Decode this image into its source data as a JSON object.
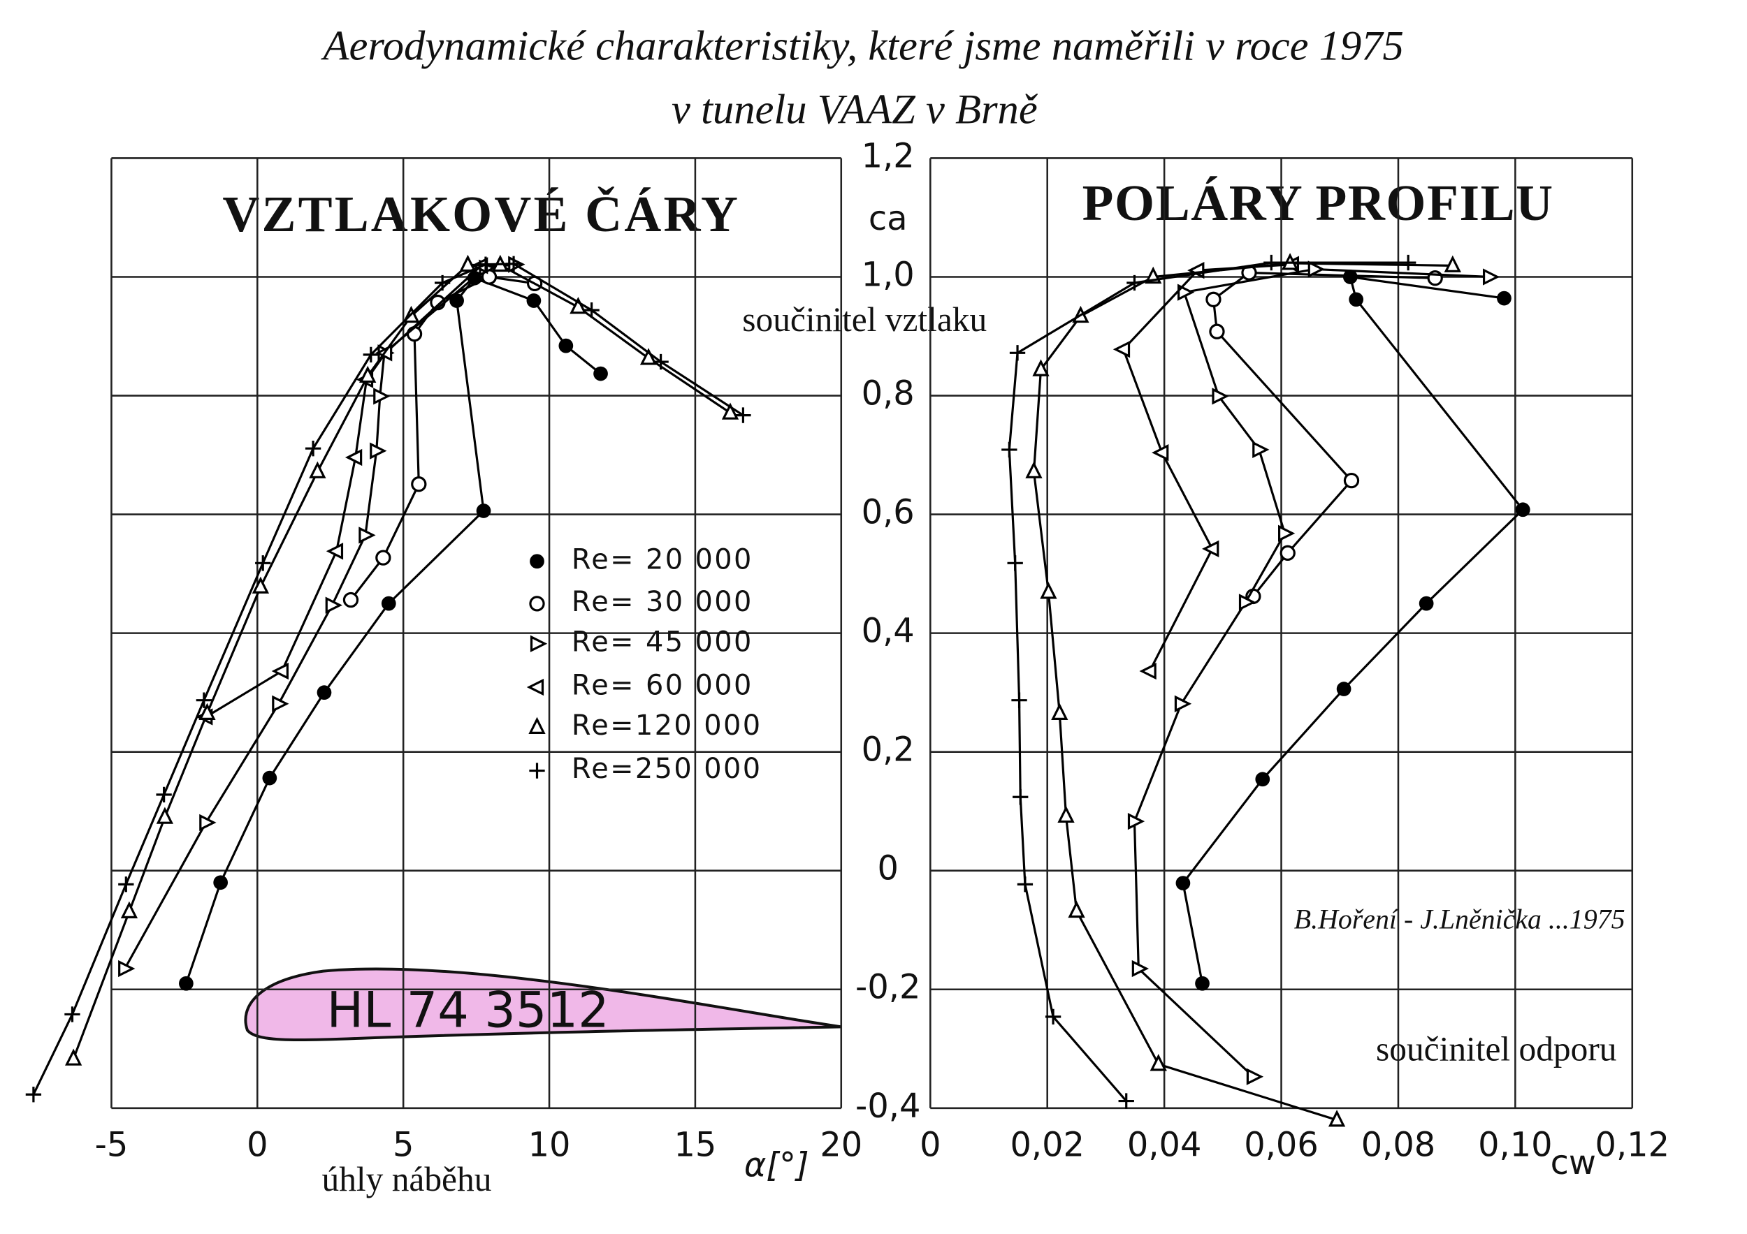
{
  "title_lines": [
    "Aerodynamické charakteristiky, které jsme naměřili v roce 1975",
    "v tunelu VAAZ v Brně"
  ],
  "chart_data": [
    {
      "type": "line",
      "title": "VZTLAKOVÉ ČÁRY",
      "ylabel": "součinitel vztlaku",
      "ylabel_symbol": "ca",
      "xlabel": "úhly náběhu",
      "xlabel_symbol": "α[°]",
      "airfoil": "HL 74 3512",
      "xlim": [
        -5,
        20
      ],
      "xticks": [
        -5,
        0,
        5,
        10,
        15,
        20
      ],
      "ylim": [
        -0.4,
        1.2
      ],
      "yticks": [
        {
          "value": -0.4,
          "label": "-0,4"
        },
        {
          "value": -0.2,
          "label": "-0,2"
        },
        0,
        {
          "value": 0.2,
          "label": "0,2"
        },
        {
          "value": 0.4,
          "label": "0,4"
        },
        {
          "value": 0.6,
          "label": "0,6"
        },
        {
          "value": 0.8,
          "label": "0,8"
        },
        {
          "value": 1.0,
          "label": "1,0"
        },
        {
          "value": 1.2,
          "label": "1,2"
        }
      ],
      "grid": true,
      "series": [
        {
          "name": "Re= 20 000",
          "marker": "dot",
          "color": "#000000",
          "x": [
            -2.44,
            -1.26,
            0.42,
            2.29,
            4.5,
            7.75,
            6.83,
            7.44,
            9.47,
            10.57,
            11.76
          ],
          "values": [
            -0.19,
            -0.02,
            0.156,
            0.3,
            0.45,
            0.606,
            0.96,
            0.998,
            0.96,
            0.884,
            0.837
          ]
        },
        {
          "name": "Re= 30 000",
          "marker": "ring",
          "color": "#000000",
          "x": [
            3.2,
            4.31,
            5.53,
            5.38,
            6.18,
            7.94,
            9.5
          ],
          "values": [
            0.456,
            0.527,
            0.651,
            0.904,
            0.957,
            1.0,
            0.989
          ]
        },
        {
          "name": "Re= 45 000",
          "marker": "tri-right",
          "color": "#000000",
          "x": [
            -4.54,
            -1.76,
            0.73,
            2.56,
            3.7,
            4.08,
            4.2,
            4.35,
            7.82,
            8.82
          ],
          "values": [
            -0.165,
            0.081,
            0.281,
            0.447,
            0.565,
            0.707,
            0.799,
            0.872,
            1.015,
            1.021
          ]
        },
        {
          "name": "Re= 60 000",
          "marker": "tri-left",
          "color": "#000000",
          "x": [
            -1.76,
            0.84,
            2.71,
            3.36,
            3.74,
            4.39,
            7.67
          ],
          "values": [
            0.259,
            0.336,
            0.538,
            0.696,
            0.827,
            0.872,
            1.019
          ]
        },
        {
          "name": "Re=120 000",
          "marker": "tri-up",
          "color": "#000000",
          "x": [
            -6.3,
            -4.39,
            -3.17,
            -1.72,
            0.11,
            2.06,
            3.78,
            5.27,
            7.21,
            8.32,
            10.99,
            13.4,
            16.2
          ],
          "values": [
            -0.317,
            -0.069,
            0.09,
            0.265,
            0.478,
            0.672,
            0.833,
            0.934,
            1.02,
            1.02,
            0.949,
            0.863,
            0.771
          ]
        },
        {
          "name": "Re=250 000",
          "marker": "plus",
          "color": "#000000",
          "x": [
            -7.67,
            -6.34,
            -4.5,
            -3.2,
            -1.83,
            0.19,
            1.91,
            3.89,
            6.34,
            7.82,
            8.78,
            11.45,
            13.82,
            16.64
          ],
          "values": [
            -0.377,
            -0.242,
            -0.023,
            0.128,
            0.287,
            0.518,
            0.711,
            0.869,
            0.99,
            1.021,
            1.022,
            0.944,
            0.857,
            0.767
          ]
        }
      ]
    },
    {
      "type": "line",
      "title": "POLÁRY PROFILU",
      "xlabel": "součinitel odporu",
      "xlabel_symbol": "cw",
      "credit": "B.Hoření - J.Lněnička ...1975",
      "xlim": [
        0,
        0.12
      ],
      "xticks": [
        0,
        {
          "value": 0.02,
          "label": "0,02"
        },
        {
          "value": 0.04,
          "label": "0,04"
        },
        {
          "value": 0.06,
          "label": "0,06"
        },
        {
          "value": 0.08,
          "label": "0,08"
        },
        {
          "value": 0.1,
          "label": "0,10"
        },
        {
          "value": 0.12,
          "label": "0,12"
        }
      ],
      "grid": true,
      "series": [
        {
          "marker": "dot",
          "color": "#000000",
          "x": [
            0.0465,
            0.0432,
            0.0568,
            0.0707,
            0.0848,
            0.1013,
            0.0728,
            0.0718,
            0.0981
          ],
          "values": [
            -0.19,
            -0.021,
            0.154,
            0.306,
            0.45,
            0.608,
            0.962,
            1.0,
            0.964
          ]
        },
        {
          "marker": "ring",
          "color": "#000000",
          "x": [
            0.0552,
            0.0611,
            0.072,
            0.049,
            0.0484,
            0.0545,
            0.0863
          ],
          "values": [
            0.462,
            0.535,
            0.657,
            0.908,
            0.962,
            1.007,
            0.998
          ]
        },
        {
          "marker": "tri-right",
          "color": "#000000",
          "x": [
            0.0552,
            0.0356,
            0.0349,
            0.0429,
            0.0539,
            0.0606,
            0.0562,
            0.0493,
            0.0434,
            0.0657,
            0.0956
          ],
          "values": [
            -0.347,
            -0.165,
            0.083,
            0.281,
            0.452,
            0.568,
            0.709,
            0.799,
            0.974,
            1.013,
            1.0
          ]
        },
        {
          "marker": "tri-left",
          "color": "#000000",
          "x": [
            0.0375,
            0.0482,
            0.0396,
            0.033,
            0.0457,
            0.0619
          ],
          "values": [
            0.336,
            0.542,
            0.704,
            0.878,
            1.011,
            1.021
          ]
        },
        {
          "marker": "tri-up",
          "color": "#000000",
          "x": [
            0.0695,
            0.039,
            0.025,
            0.0232,
            0.0221,
            0.0202,
            0.0177,
            0.0189,
            0.0257,
            0.0381,
            0.0615,
            0.0893
          ],
          "values": [
            -0.42,
            -0.326,
            -0.068,
            0.092,
            0.265,
            0.469,
            0.672,
            0.844,
            0.934,
            1.0,
            1.023,
            1.019
          ]
        },
        {
          "marker": "plus",
          "color": "#000000",
          "x": [
            0.0335,
            0.021,
            0.0162,
            0.0154,
            0.0152,
            0.0145,
            0.0135,
            0.0149,
            0.0349,
            0.0583,
            0.0817
          ],
          "values": [
            -0.388,
            -0.246,
            -0.023,
            0.124,
            0.287,
            0.518,
            0.709,
            0.872,
            0.99,
            1.024,
            1.024
          ]
        }
      ]
    }
  ]
}
